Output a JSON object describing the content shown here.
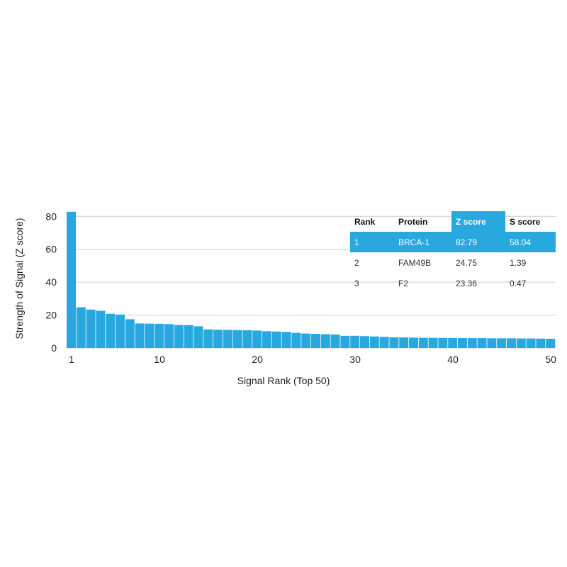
{
  "chart_data": {
    "type": "bar",
    "xlabel": "Signal Rank (Top 50)",
    "ylabel": "Strength of Signal (Z score)",
    "ylim": [
      0,
      84
    ],
    "yticks": [
      0,
      20,
      40,
      60,
      80
    ],
    "xticks": [
      1,
      10,
      20,
      30,
      40,
      50
    ],
    "grid": "horizontal",
    "color": "#29a8e0",
    "x": [
      1,
      2,
      3,
      4,
      5,
      6,
      7,
      8,
      9,
      10,
      11,
      12,
      13,
      14,
      15,
      16,
      17,
      18,
      19,
      20,
      21,
      22,
      23,
      24,
      25,
      26,
      27,
      28,
      29,
      30,
      31,
      32,
      33,
      34,
      35,
      36,
      37,
      38,
      39,
      40,
      41,
      42,
      43,
      44,
      45,
      46,
      47,
      48,
      49,
      50
    ],
    "values": [
      82.79,
      24.75,
      23.36,
      22.6,
      20.8,
      20.3,
      17.5,
      14.9,
      14.8,
      14.7,
      14.5,
      14.0,
      13.9,
      13.2,
      11.3,
      11.1,
      11.0,
      10.9,
      10.8,
      10.6,
      10.2,
      10.0,
      9.8,
      9.2,
      8.8,
      8.6,
      8.4,
      8.2,
      7.4,
      7.4,
      7.2,
      7.0,
      6.8,
      6.5,
      6.4,
      6.3,
      6.2,
      6.2,
      6.1,
      6.1,
      6.0,
      6.0,
      6.0,
      5.9,
      5.9,
      5.9,
      5.8,
      5.8,
      5.7,
      5.6
    ]
  },
  "table": {
    "headers": [
      "Rank",
      "Protein",
      "Z score",
      "S score"
    ],
    "rows": [
      [
        "1",
        "BRCA-1",
        "82.79",
        "58.04"
      ],
      [
        "2",
        "FAM49B",
        "24.75",
        "1.39"
      ],
      [
        "3",
        "F2",
        "23.36",
        "0.47"
      ]
    ],
    "highlight_color": "#29a8e0"
  }
}
